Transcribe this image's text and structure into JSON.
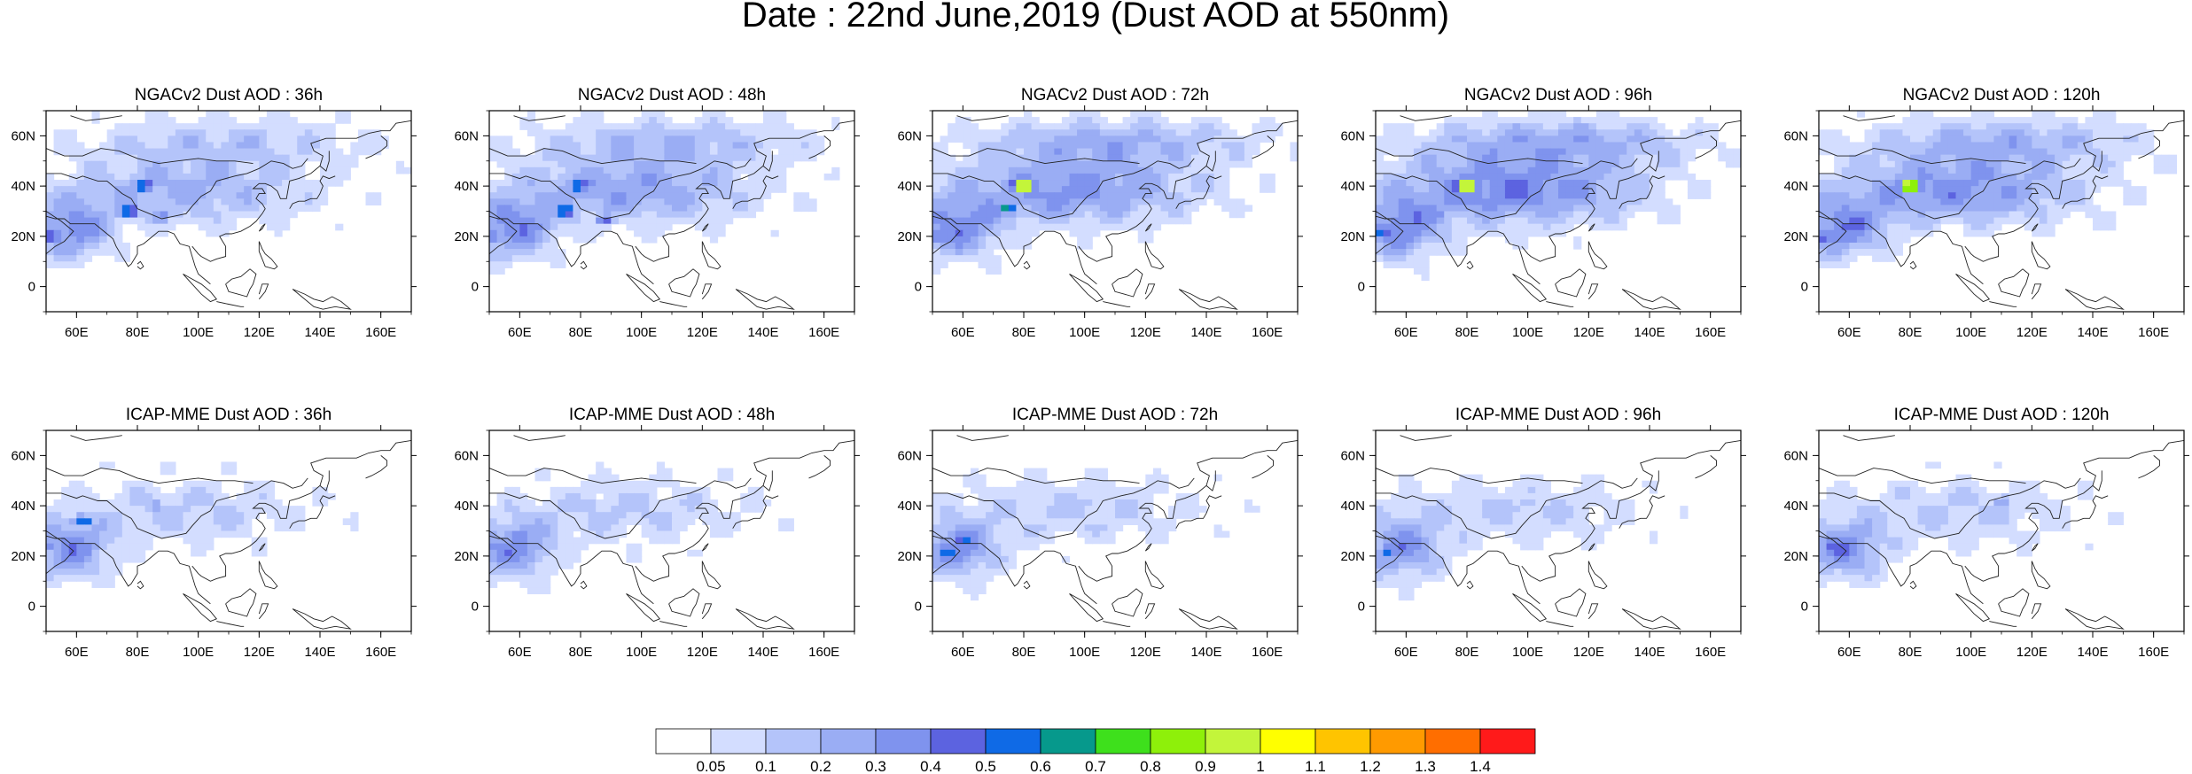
{
  "figure": {
    "title": "Date : 22nd June,2019 (Dust AOD at 550nm)"
  },
  "axes": {
    "x_ticks": [
      "60E",
      "80E",
      "100E",
      "120E",
      "140E",
      "160E"
    ],
    "y_ticks": [
      "60N",
      "40N",
      "20N",
      "0"
    ]
  },
  "panels": [
    {
      "title": "NGACv2 Dust AOD : 36h",
      "model": "NGACv2",
      "lead": "36h",
      "hotspots": [
        {
          "lon": 82,
          "lat": 40,
          "level": 8
        },
        {
          "lon": 77,
          "lat": 30,
          "level": 8
        },
        {
          "lon": 52,
          "lat": 20,
          "level": 7
        },
        {
          "lon": 88,
          "lat": 28,
          "level": 5
        }
      ],
      "bg": 0.3
    },
    {
      "title": "NGACv2 Dust AOD : 48h",
      "model": "NGACv2",
      "lead": "48h",
      "hotspots": [
        {
          "lon": 79,
          "lat": 40,
          "level": 8
        },
        {
          "lon": 75,
          "lat": 30,
          "level": 8
        },
        {
          "lon": 52,
          "lat": 20,
          "level": 7
        },
        {
          "lon": 88,
          "lat": 27,
          "level": 6
        }
      ],
      "bg": 0.35
    },
    {
      "title": "NGACv2 Dust AOD : 72h",
      "model": "NGACv2",
      "lead": "72h",
      "hotspots": [
        {
          "lon": 80,
          "lat": 40,
          "level": 14
        },
        {
          "lon": 75,
          "lat": 31,
          "level": 8
        },
        {
          "lon": 52,
          "lat": 20,
          "level": 7
        }
      ],
      "bg": 0.4
    },
    {
      "title": "NGACv2 Dust AOD : 96h",
      "model": "NGACv2",
      "lead": "96h",
      "hotspots": [
        {
          "lon": 80,
          "lat": 40,
          "level": 14
        },
        {
          "lon": 52,
          "lat": 22,
          "level": 7
        },
        {
          "lon": 70,
          "lat": 28,
          "level": 5
        }
      ],
      "bg": 0.45
    },
    {
      "title": "NGACv2 Dust AOD : 120h",
      "model": "NGACv2",
      "lead": "120h",
      "hotspots": [
        {
          "lon": 80,
          "lat": 40,
          "level": 14
        },
        {
          "lon": 52,
          "lat": 20,
          "level": 7
        },
        {
          "lon": 70,
          "lat": 28,
          "level": 4
        }
      ],
      "bg": 0.4
    },
    {
      "title": "ICAP-MME Dust AOD : 36h",
      "model": "ICAP-MME",
      "lead": "36h",
      "hotspots": [
        {
          "lon": 62,
          "lat": 34,
          "level": 8
        },
        {
          "lon": 52,
          "lat": 24,
          "level": 5
        },
        {
          "lon": 86,
          "lat": 40,
          "level": 4
        }
      ],
      "bg": 0.2
    },
    {
      "title": "ICAP-MME Dust AOD : 48h",
      "model": "ICAP-MME",
      "lead": "48h",
      "hotspots": [
        {
          "lon": 60,
          "lat": 28,
          "level": 6
        },
        {
          "lon": 52,
          "lat": 24,
          "level": 5
        },
        {
          "lon": 84,
          "lat": 40,
          "level": 4
        }
      ],
      "bg": 0.2
    },
    {
      "title": "ICAP-MME Dust AOD : 72h",
      "model": "ICAP-MME",
      "lead": "72h",
      "hotspots": [
        {
          "lon": 55,
          "lat": 22,
          "level": 8
        },
        {
          "lon": 60,
          "lat": 27,
          "level": 7
        },
        {
          "lon": 100,
          "lat": 42,
          "level": 3
        }
      ],
      "bg": 0.2
    },
    {
      "title": "ICAP-MME Dust AOD : 96h",
      "model": "ICAP-MME",
      "lead": "96h",
      "hotspots": [
        {
          "lon": 54,
          "lat": 22,
          "level": 7
        },
        {
          "lon": 60,
          "lat": 28,
          "level": 5
        },
        {
          "lon": 100,
          "lat": 42,
          "level": 3
        }
      ],
      "bg": 0.2
    },
    {
      "title": "ICAP-MME Dust AOD : 120h",
      "model": "ICAP-MME",
      "lead": "120h",
      "hotspots": [
        {
          "lon": 54,
          "lat": 24,
          "level": 5
        },
        {
          "lon": 110,
          "lat": 42,
          "level": 4
        },
        {
          "lon": 65,
          "lat": 28,
          "level": 4
        }
      ],
      "bg": 0.2
    }
  ],
  "colorbar": {
    "labels": [
      "0.05",
      "0.1",
      "0.2",
      "0.3",
      "0.4",
      "0.5",
      "0.6",
      "0.7",
      "0.8",
      "0.9",
      "1",
      "1.1",
      "1.2",
      "1.3",
      "1.4"
    ],
    "colors": [
      "#ffffff",
      "#d3ddff",
      "#b4c4fa",
      "#9aadf4",
      "#7f93ee",
      "#5c63e0",
      "#0f6ae6",
      "#06998c",
      "#3ee01c",
      "#8ef00a",
      "#c3f53a",
      "#ffff00",
      "#ffc400",
      "#ff9a00",
      "#ff6e00",
      "#ff1a1a"
    ]
  },
  "map_extent": {
    "lon_min": 50,
    "lon_max": 170,
    "lat_min": -10,
    "lat_max": 70
  }
}
